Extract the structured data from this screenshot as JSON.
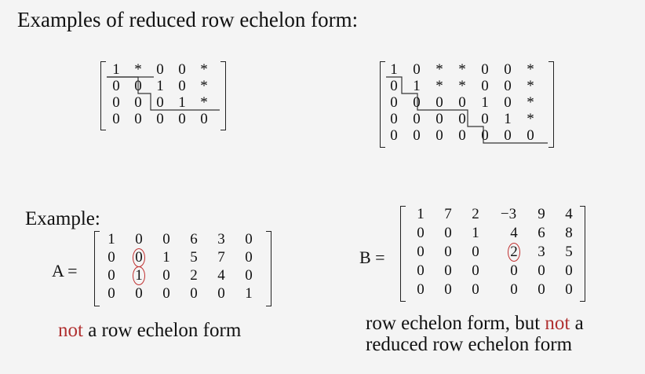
{
  "title": "Examples of reduced row echelon form:",
  "example_label": "Example:",
  "matrix_names": {
    "A": "A =",
    "B": "B ="
  },
  "examples": [
    {
      "rows": [
        [
          "1",
          "*",
          "0",
          "0",
          "*"
        ],
        [
          "0",
          "0",
          "1",
          "0",
          "*"
        ],
        [
          "0",
          "0",
          "0",
          "1",
          "*"
        ],
        [
          "0",
          "0",
          "0",
          "0",
          "0"
        ]
      ]
    },
    {
      "rows": [
        [
          "1",
          "0",
          "*",
          "*",
          "0",
          "0",
          "*"
        ],
        [
          "0",
          "1",
          "*",
          "*",
          "0",
          "0",
          "*"
        ],
        [
          "0",
          "0",
          "0",
          "0",
          "1",
          "0",
          "*"
        ],
        [
          "0",
          "0",
          "0",
          "0",
          "0",
          "1",
          "*"
        ],
        [
          "0",
          "0",
          "0",
          "0",
          "0",
          "0",
          "0"
        ]
      ]
    }
  ],
  "A": {
    "rows": [
      [
        "1",
        "0",
        "0",
        "6",
        "3",
        "0"
      ],
      [
        "0",
        "0",
        "1",
        "5",
        "7",
        "0"
      ],
      [
        "0",
        "1",
        "0",
        "2",
        "4",
        "0"
      ],
      [
        "0",
        "0",
        "0",
        "0",
        "0",
        "1"
      ]
    ]
  },
  "B": {
    "rows": [
      [
        "1",
        "7",
        "2",
        "−3",
        "9",
        "4"
      ],
      [
        "0",
        "0",
        "1",
        "4",
        "6",
        "8"
      ],
      [
        "0",
        "0",
        "0",
        "2",
        "3",
        "5"
      ],
      [
        "0",
        "0",
        "0",
        "0",
        "0",
        "0"
      ],
      [
        "0",
        "0",
        "0",
        "0",
        "0",
        "0"
      ]
    ]
  },
  "caption_a": {
    "red": "not",
    "rest": " a row echelon form"
  },
  "caption_b": {
    "line1_pre": "row echelon form, but ",
    "line1_red": "not",
    "line1_post": " a",
    "line2": "reduced row echelon form"
  }
}
